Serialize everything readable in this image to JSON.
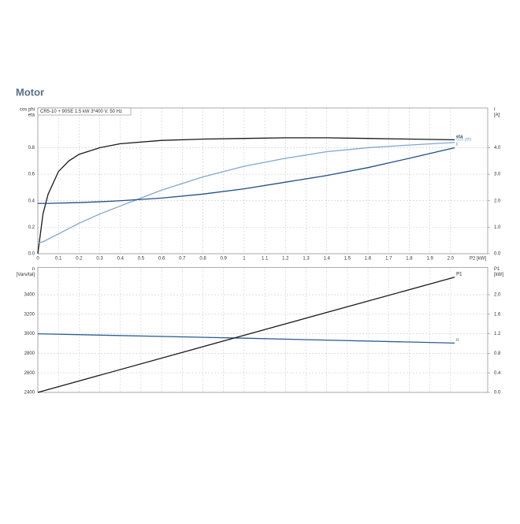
{
  "header": {
    "title": "Motor"
  },
  "chart_data": [
    {
      "type": "line",
      "subtitle": "CR5-10 + 90SE   1.5 kW   3*400 V, 50 Hz",
      "ylabel": [
        "cos phi",
        "eta"
      ],
      "y2label": [
        "I",
        "[A]"
      ],
      "xlabel": "P2 [kW]",
      "xlim": [
        0,
        2.18
      ],
      "ylim": [
        0,
        1.1
      ],
      "y2lim": [
        0,
        5.5
      ],
      "xticks": [
        0,
        0.1,
        0.2,
        0.3,
        0.4,
        0.5,
        0.6,
        0.7,
        0.8,
        0.9,
        1,
        1.1,
        1.2,
        1.3,
        1.4,
        1.5,
        1.6,
        1.7,
        1.8,
        1.9,
        {
          "value": 2,
          "label": "2.0"
        }
      ],
      "yticks": [
        {
          "value": 0,
          "label": "0.0"
        },
        0.2,
        0.4,
        0.6,
        0.8
      ],
      "y2ticks": [
        {
          "value": 0,
          "label": "0.0"
        },
        {
          "value": 1,
          "label": "1.0"
        },
        {
          "value": 2,
          "label": "2.0"
        },
        {
          "value": 3,
          "label": "3.0"
        },
        {
          "value": 4,
          "label": "4.0"
        }
      ],
      "show_xtick_labels": true,
      "grid": true,
      "x": [
        0,
        0.025,
        0.05,
        0.1,
        0.15,
        0.2,
        0.3,
        0.4,
        0.6,
        0.8,
        1.0,
        1.2,
        1.4,
        1.6,
        1.8,
        2.02
      ],
      "series": [
        {
          "name": "eta",
          "color": "#1a1a1a",
          "values": [
            0,
            0.3,
            0.45,
            0.62,
            0.7,
            0.75,
            0.8,
            0.83,
            0.855,
            0.865,
            0.87,
            0.875,
            0.875,
            0.87,
            0.865,
            0.86
          ]
        },
        {
          "name": "cos phi",
          "color": "#7fa7cf",
          "values": [
            0.08,
            0.09,
            0.11,
            0.15,
            0.19,
            0.23,
            0.3,
            0.36,
            0.48,
            0.58,
            0.66,
            0.72,
            0.77,
            0.8,
            0.82,
            0.84
          ]
        },
        {
          "name": "I",
          "color": "#1f4e87",
          "axis": "y2",
          "values": [
            1.9,
            1.9,
            1.9,
            1.91,
            1.92,
            1.93,
            1.96,
            2.0,
            2.1,
            2.25,
            2.45,
            2.7,
            2.95,
            3.25,
            3.6,
            4.0
          ]
        }
      ]
    },
    {
      "type": "line",
      "ylabel": [
        "n",
        "[Varv/tal]"
      ],
      "y2label": [
        "P1",
        "[kW]"
      ],
      "xlim": [
        0,
        2.18
      ],
      "ylim": [
        2400,
        3680
      ],
      "y2lim": [
        0,
        2.56
      ],
      "xticks": [
        0,
        0.1,
        0.2,
        0.3,
        0.4,
        0.5,
        0.6,
        0.7,
        0.8,
        0.9,
        1,
        1.1,
        1.2,
        1.3,
        1.4,
        1.5,
        1.6,
        1.7,
        1.8,
        1.9,
        2
      ],
      "yticks": [
        2400,
        2600,
        2800,
        3000,
        3200,
        3400
      ],
      "y2ticks": [
        {
          "value": 0,
          "label": "0.0"
        },
        0.4,
        0.8,
        {
          "value": 1.2,
          "label": "1.2"
        },
        1.6,
        {
          "value": 2,
          "label": "2.0"
        }
      ],
      "show_xtick_labels": false,
      "grid": true,
      "x": [
        0,
        1.0,
        2.02
      ],
      "series": [
        {
          "name": "n",
          "color": "#2b5d95",
          "values": [
            3000,
            2955,
            2905
          ]
        },
        {
          "name": "P1",
          "color": "#1a1a1a",
          "axis": "y2",
          "values": [
            0.0,
            1.17,
            2.36
          ]
        }
      ]
    }
  ]
}
